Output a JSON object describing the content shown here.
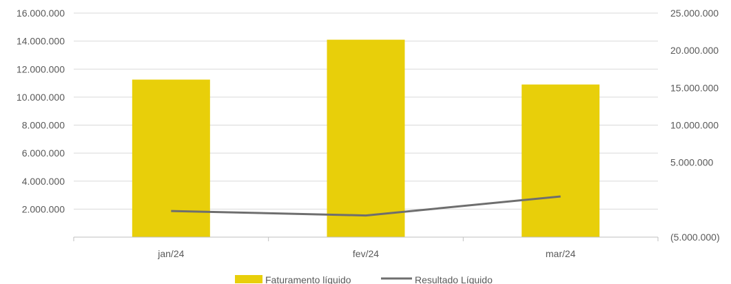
{
  "chart_data": {
    "type": "bar",
    "categories": [
      "jan/24",
      "fev/24",
      "mar/24"
    ],
    "series": [
      {
        "name": "Faturamento líquido",
        "type": "bar",
        "axis": "left",
        "color": "#E8CF0A",
        "values": [
          11250000,
          14100000,
          10900000
        ]
      },
      {
        "name": "Resultado Líquido",
        "type": "line",
        "axis": "right",
        "color": "#6E6E6E",
        "values": [
          -1500000,
          -2100000,
          450000
        ]
      }
    ],
    "left_axis": {
      "ylim": [
        0,
        16000000
      ],
      "ticks": [
        2000000,
        4000000,
        6000000,
        8000000,
        10000000,
        12000000,
        14000000,
        16000000
      ],
      "tick_labels": [
        "2.000.000",
        "4.000.000",
        "6.000.000",
        "8.000.000",
        "10.000.000",
        "12.000.000",
        "14.000.000",
        "16.000.000"
      ]
    },
    "right_axis": {
      "ylim": [
        -5000000,
        25000000
      ],
      "ticks": [
        -5000000,
        5000000,
        10000000,
        15000000,
        20000000,
        25000000
      ],
      "tick_labels": [
        "(5.000.000)",
        "5.000.000",
        "10.000.000",
        "15.000.000",
        "20.000.000",
        "25.000.000"
      ]
    },
    "grid": true,
    "legend": "bottom-center"
  }
}
